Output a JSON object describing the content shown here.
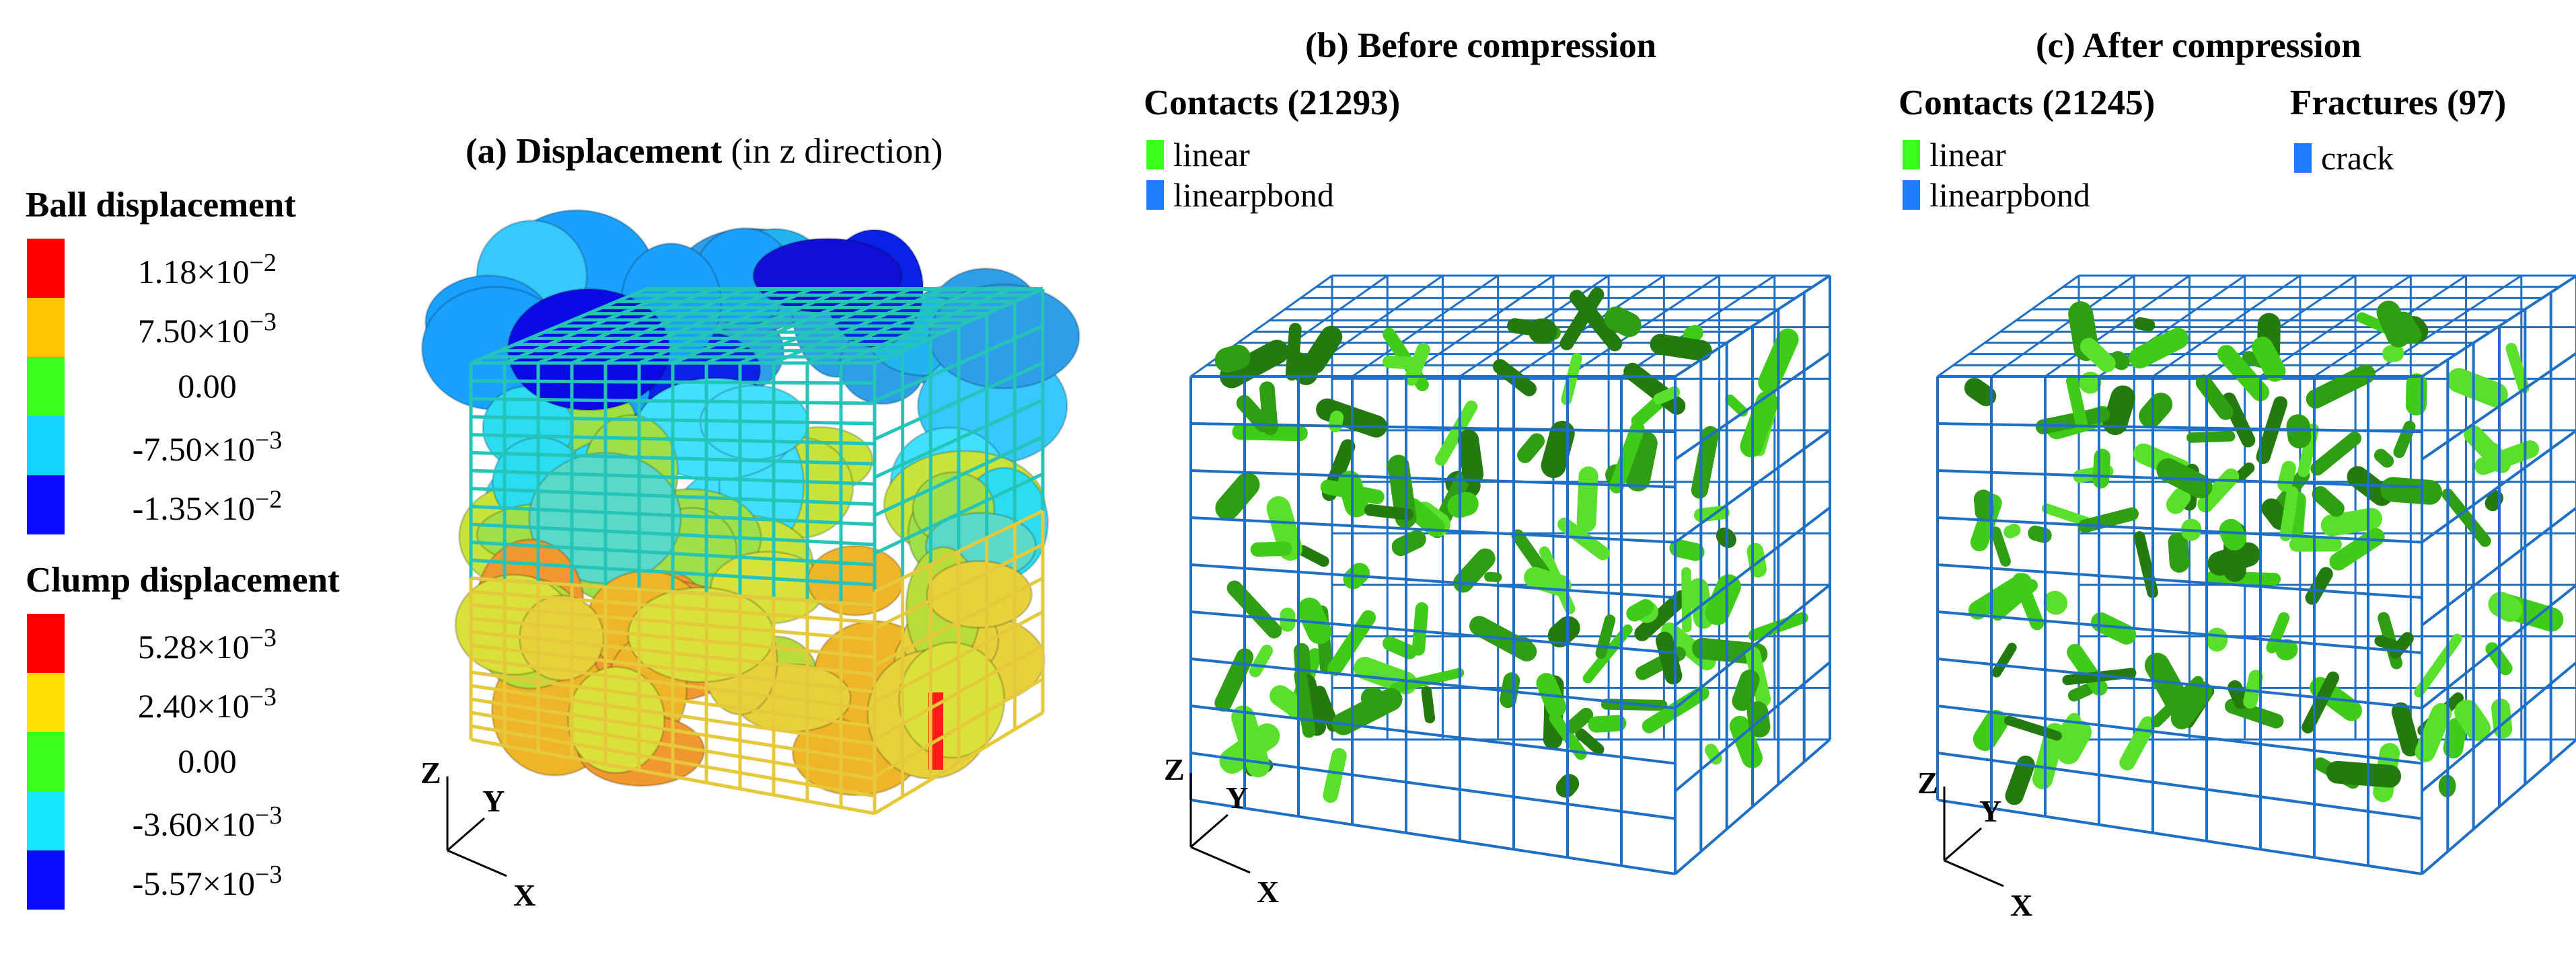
{
  "colorbars": [
    {
      "title": "Ball displacement",
      "labels": [
        {
          "mantissa": "1.18",
          "exp": "−2"
        },
        {
          "mantissa": "7.50",
          "exp": "−3"
        },
        {
          "mantissa": "0.00",
          "exp": ""
        },
        {
          "mantissa": "-7.50",
          "exp": "−3"
        },
        {
          "mantissa": "-1.35",
          "exp": "−2"
        }
      ],
      "colors": [
        "#ff0000",
        "#ffc400",
        "#3cff1e",
        "#14d2ff",
        "#0a0aff"
      ]
    },
    {
      "title": "Clump displacement",
      "labels": [
        {
          "mantissa": "5.28",
          "exp": "−3"
        },
        {
          "mantissa": "2.40",
          "exp": "−3"
        },
        {
          "mantissa": "0.00",
          "exp": ""
        },
        {
          "mantissa": "-3.60",
          "exp": "−3"
        },
        {
          "mantissa": "-5.57",
          "exp": "−3"
        }
      ],
      "colors": [
        "#ff0000",
        "#ffe000",
        "#3cff1e",
        "#14e6ff",
        "#0a0aff"
      ]
    }
  ],
  "times_sign": "×10",
  "panel_a": {
    "title_bold": "(a) Displacement",
    "title_normal": " (in z direction)"
  },
  "panel_b": {
    "title": "(b) Before compression",
    "contacts_title": "Contacts (21293)",
    "legend": [
      {
        "label": "linear",
        "color": "#3cff1e"
      },
      {
        "label": "linearpbond",
        "color": "#1e7dff"
      }
    ]
  },
  "panel_c": {
    "title": "(c) After compression",
    "contacts_title": "Contacts (21245)",
    "legend": [
      {
        "label": "linear",
        "color": "#3cff1e"
      },
      {
        "label": "linearpbond",
        "color": "#1e7dff"
      }
    ],
    "fractures_title": "Fractures (97)",
    "fractures_legend": [
      {
        "label": "crack",
        "color": "#1e7dff"
      }
    ]
  },
  "axes": {
    "z": "Z",
    "y": "Y",
    "x": "X"
  },
  "colors": {
    "mesh_blue": "#1f6fc4",
    "mesh_teal": "#25c4b8",
    "mesh_yellow": "#e6c93a",
    "contact_green": "#3fcc18"
  }
}
